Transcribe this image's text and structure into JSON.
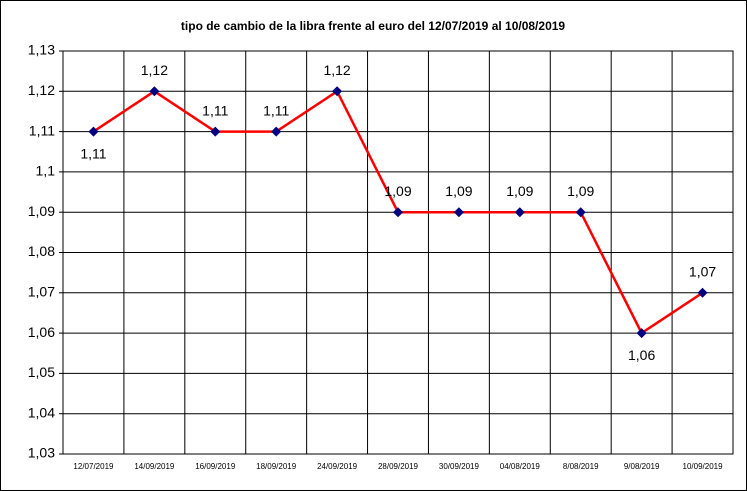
{
  "chart_data": {
    "type": "line",
    "title": "tipo de cambio de la libra frente al euro del 12/07/2019 al 10/08/2019",
    "categories": [
      "12/07/2019",
      "14/09/2019",
      "16/09/2019",
      "18/09/2019",
      "24/09/2019",
      "28/09/2019",
      "30/09/2019",
      "04/08/2019",
      "8/08/2019",
      "9/08/2019",
      "10/09/2019"
    ],
    "series": [
      {
        "color": "#ff0000",
        "marker_color": "#000080",
        "values": [
          1.11,
          1.12,
          1.11,
          1.11,
          1.12,
          1.09,
          1.09,
          1.09,
          1.09,
          1.06,
          1.07
        ],
        "value_labels": [
          "1,11",
          "1,12",
          "1,11",
          "1,11",
          "1,12",
          "1,09",
          "1,09",
          "1,09",
          "1,09",
          "1,06",
          "1,07"
        ]
      }
    ],
    "ylim": [
      1.03,
      1.13
    ],
    "yticks": [
      {
        "value": 1.03,
        "label": "1,03"
      },
      {
        "value": 1.04,
        "label": "1,04"
      },
      {
        "value": 1.05,
        "label": "1,05"
      },
      {
        "value": 1.06,
        "label": "1,06"
      },
      {
        "value": 1.07,
        "label": "1,07"
      },
      {
        "value": 1.08,
        "label": "1,08"
      },
      {
        "value": 1.09,
        "label": "1,09"
      },
      {
        "value": 1.1,
        "label": "1,1"
      },
      {
        "value": 1.11,
        "label": "1,11"
      },
      {
        "value": 1.12,
        "label": "1,12"
      },
      {
        "value": 1.13,
        "label": "1,13"
      }
    ],
    "grid": true
  }
}
